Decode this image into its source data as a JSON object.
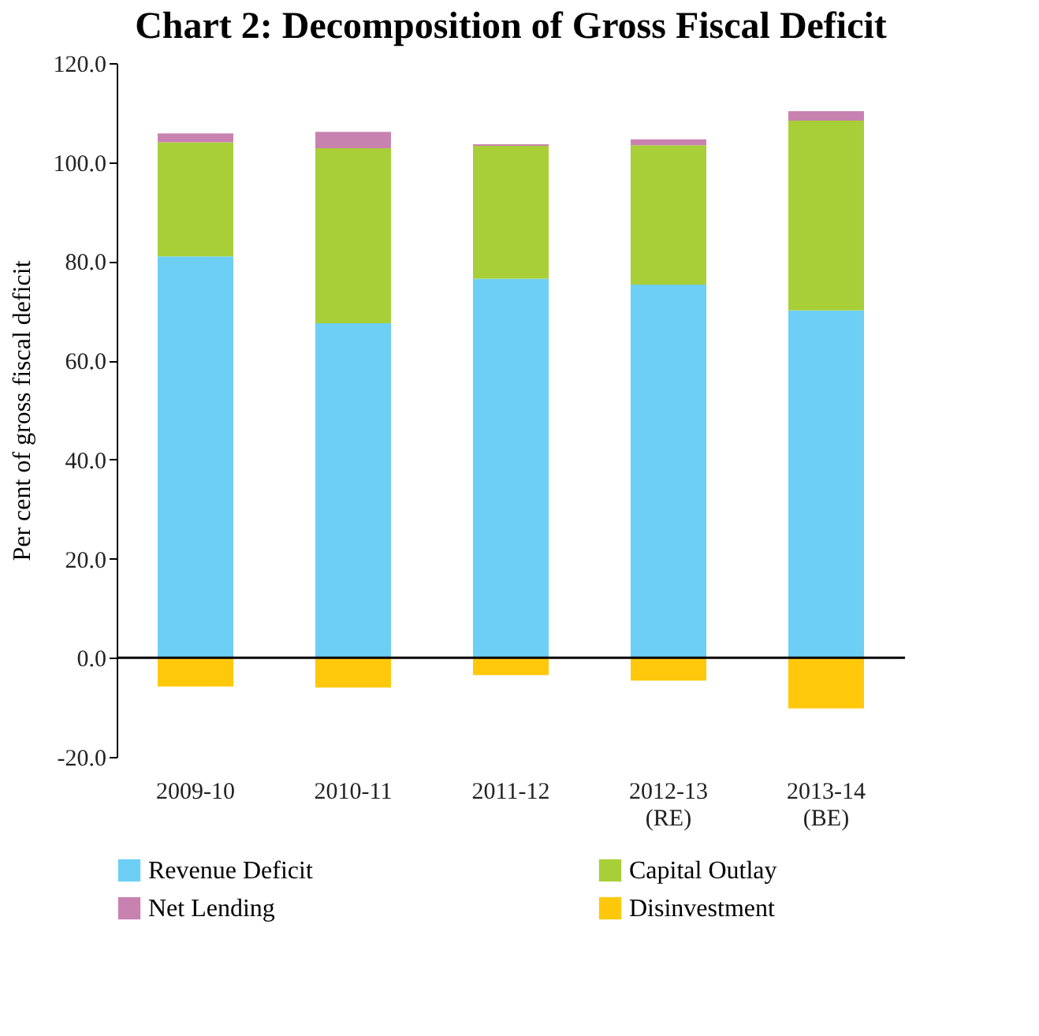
{
  "chart_data": {
    "type": "bar",
    "stacked": true,
    "title": "Chart 2: Decomposition of Gross Fiscal Deficit",
    "ylabel": "Per cent of gross fiscal deficit",
    "categories": [
      "2009-10",
      "2010-11",
      "2011-12",
      "2012-13 (RE)",
      "2013-14 (BE)"
    ],
    "series": [
      {
        "name": "Revenue Deficit",
        "color": "#6dcff6",
        "values": [
          81.0,
          67.5,
          76.5,
          75.3,
          70.1
        ]
      },
      {
        "name": "Capital Outlay",
        "color": "#a8cf38",
        "values": [
          23.0,
          35.3,
          26.8,
          28.1,
          38.3
        ]
      },
      {
        "name": "Net Lending",
        "color": "#c882b0",
        "values": [
          1.8,
          3.3,
          0.3,
          1.2,
          1.9
        ]
      },
      {
        "name": "Disinvestment",
        "color": "#ffc80a",
        "values": [
          -5.8,
          -6.0,
          -3.5,
          -4.6,
          -10.2
        ]
      }
    ],
    "ylim": [
      -20,
      120
    ],
    "yticks": [
      {
        "value": -20,
        "label": "-20.0"
      },
      {
        "value": 0,
        "label": "0.0"
      },
      {
        "value": 20,
        "label": "20.0"
      },
      {
        "value": 40,
        "label": "40.0"
      },
      {
        "value": 60,
        "label": "60.0"
      },
      {
        "value": 80,
        "label": "80.0"
      },
      {
        "value": 100,
        "label": "100.0"
      },
      {
        "value": 120,
        "label": "120.0"
      }
    ],
    "ref_lines": [
      {
        "axis": "y",
        "value": 0,
        "color": "#000000"
      }
    ],
    "grid": false,
    "legend": "bottom"
  }
}
